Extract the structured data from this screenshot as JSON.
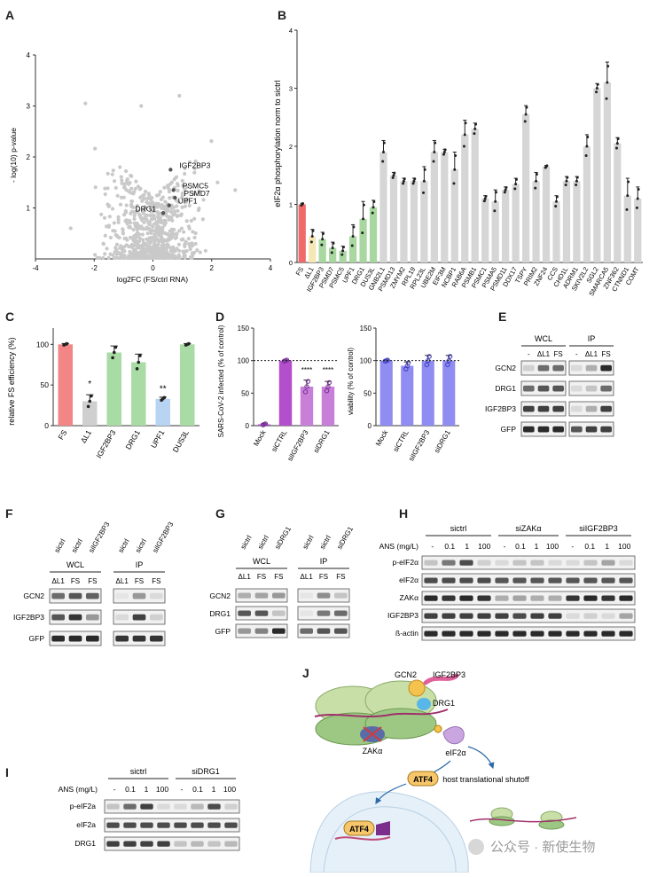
{
  "panels": {
    "A": {
      "letter": "A",
      "xlabel": "log2FC (FS/ctrl RNA)",
      "ylabel": "- log(10) p-value",
      "xticks": [
        "-4",
        "-2",
        "0",
        "2",
        "4"
      ],
      "yticks": [
        "1",
        "2",
        "3",
        "4"
      ],
      "labels": [
        "IGF2BP3",
        "PSMC5",
        "PSMD7",
        "UPF1",
        "DRG1"
      ]
    },
    "B": {
      "letter": "B",
      "ylabel": "eIF2α phosphorylation norm to sictrl",
      "yticks": [
        "0",
        "1",
        "2",
        "3",
        "4"
      ]
    },
    "C": {
      "letter": "C",
      "ylabel": "relative FS efficiency (%)",
      "yticks": [
        "0",
        "50",
        "100"
      ],
      "annotations": [
        "*",
        "**"
      ]
    },
    "D": {
      "letter": "D",
      "left_ylabel": "SARS-CoV-2 infected (% of control)",
      "right_ylabel": "viability (% of control)",
      "yticks": [
        "0",
        "50",
        "100",
        "150"
      ],
      "stars": "****"
    },
    "E": {
      "letter": "E",
      "groups": [
        "WCL",
        "IP"
      ],
      "lanes": [
        "-",
        "ΔL1",
        "FS"
      ],
      "rows": [
        "GCN2",
        "DRG1",
        "IGF2BP3",
        "GFP"
      ]
    },
    "F": {
      "letter": "F",
      "top_labels": [
        "sictrl",
        "sictrl",
        "siIGF2BP3"
      ],
      "groups": [
        "WCL",
        "IP"
      ],
      "lanes": [
        "ΔL1",
        "FS",
        "FS"
      ],
      "rows": [
        "GCN2",
        "IGF2BP3",
        "GFP"
      ]
    },
    "G": {
      "letter": "G",
      "top_labels": [
        "sictrl",
        "sictrl",
        "siDRG1"
      ],
      "groups": [
        "WCL",
        "IP"
      ],
      "lanes": [
        "ΔL1",
        "FS",
        "FS"
      ],
      "rows": [
        "GCN2",
        "DRG1",
        "GFP"
      ]
    },
    "H": {
      "letter": "H",
      "groups": [
        "sictrl",
        "siZAKα",
        "siIGF2BP3"
      ],
      "ans_label": "ANS (mg/L)",
      "doses": [
        "-",
        "0.1",
        "1",
        "100"
      ],
      "rows": [
        "p-eIF2α",
        "eIF2α",
        "ZAKα",
        "IGF2BP3",
        "ß-actin"
      ]
    },
    "I": {
      "letter": "I",
      "groups": [
        "sictrl",
        "siDRG1"
      ],
      "ans_label": "ANS (mg/L)",
      "doses": [
        "-",
        "0.1",
        "1",
        "100"
      ],
      "rows": [
        "p-eIF2a",
        "eIF2a",
        "DRG1"
      ]
    },
    "J": {
      "letter": "J",
      "labels": {
        "gcn2": "GCN2",
        "igf2bp3": "IGF2BP3",
        "drg1": "DRG1",
        "zak": "ZAKα",
        "eif2a": "eIF2α",
        "atf4": "ATF4",
        "atf4_nucleus": "ATF4",
        "shutoff": "host translational shutoff"
      }
    }
  },
  "watermark": "公众号 · 新使生物",
  "chart_data": [
    {
      "type": "scatter",
      "panel": "A",
      "xlabel": "log2FC (FS/ctrl RNA)",
      "ylabel": "- log(10) p-value",
      "xlim": [
        -4,
        4
      ],
      "ylim": [
        0,
        4
      ],
      "labeled_points": [
        {
          "name": "IGF2BP3",
          "x": 0.6,
          "y": 1.75
        },
        {
          "name": "PSMC5",
          "x": 0.7,
          "y": 1.35
        },
        {
          "name": "PSMD7",
          "x": 0.75,
          "y": 1.2
        },
        {
          "name": "UPF1",
          "x": 0.55,
          "y": 1.05
        },
        {
          "name": "DRG1",
          "x": 0.35,
          "y": 0.9
        }
      ]
    },
    {
      "type": "bar",
      "panel": "B",
      "ylabel": "eIF2α phosphorylation norm to sictrl",
      "ylim": [
        0,
        4
      ],
      "categories": [
        "FS",
        "ΔL1",
        "IGF2BP3",
        "PSMD7",
        "PSMC5",
        "UPF1",
        "DRG1",
        "DUS3L",
        "GNB2L1",
        "PSMD13",
        "ZMYM2",
        "RPL19",
        "RPL23L",
        "UBE2M",
        "EIF3M",
        "NCBP1",
        "RAB6A",
        "PSMB1",
        "PSMC1",
        "PSMA5",
        "PSMD11",
        "DDX17",
        "TSPY",
        "PRIM2",
        "ZNF24",
        "CCS",
        "CHD1L",
        "ADRM1",
        "SKIV2L2",
        "SGL2",
        "SMARCA5",
        "ZNF362",
        "CTNND1",
        "COMT"
      ],
      "values": [
        1.0,
        0.45,
        0.4,
        0.25,
        0.2,
        0.45,
        0.75,
        0.95,
        1.9,
        1.5,
        1.4,
        1.4,
        1.4,
        1.9,
        1.9,
        1.6,
        2.2,
        2.3,
        1.1,
        1.05,
        1.25,
        1.35,
        2.55,
        1.4,
        1.65,
        1.05,
        1.4,
        1.4,
        2.0,
        3.0,
        3.1,
        2.05,
        1.15,
        1.1
      ],
      "errors": [
        0.02,
        0.12,
        0.12,
        0.1,
        0.08,
        0.2,
        0.3,
        0.12,
        0.2,
        0.05,
        0.05,
        0.05,
        0.25,
        0.2,
        0.05,
        0.3,
        0.25,
        0.1,
        0.05,
        0.2,
        0.05,
        0.1,
        0.15,
        0.15,
        0.02,
        0.1,
        0.08,
        0.08,
        0.2,
        0.08,
        0.35,
        0.1,
        0.3,
        0.2
      ],
      "colors": [
        "#ef6b6b",
        "#f6e7b6",
        "#a8d8a0",
        "#a8d8a0",
        "#a8d8a0",
        "#a8d8a0",
        "#a8d8a0",
        "#a8d8a0",
        "#d6d6d6"
      ]
    },
    {
      "type": "bar",
      "panel": "C",
      "ylabel": "relative FS efficiency (%)",
      "ylim": [
        0,
        120
      ],
      "categories": [
        "FS",
        "ΔL1",
        "IGF2BP3",
        "DRG1",
        "UPF1",
        "DUS3L"
      ],
      "values": [
        100,
        30,
        90,
        78,
        33,
        100
      ],
      "errors": [
        1,
        8,
        8,
        10,
        2,
        1
      ],
      "colors": [
        "#f28585",
        "#cfcfcf",
        "#a9dba4",
        "#a9dba4",
        "#b9d3f2",
        "#a9dba4"
      ]
    },
    {
      "type": "bar",
      "panel": "D-left",
      "ylabel": "SARS-CoV-2 infected (% of control)",
      "ylim": [
        0,
        150
      ],
      "categories": [
        "Mock",
        "siCTRL",
        "siIGF2BP3",
        "siDRG1"
      ],
      "values": [
        2,
        100,
        60,
        60
      ],
      "errors": [
        1,
        1,
        10,
        8
      ],
      "colors": [
        "#b34fcc",
        "#b34fcc",
        "#c77fd8",
        "#c77fd8"
      ]
    },
    {
      "type": "bar",
      "panel": "D-right",
      "ylabel": "viability (% of control)",
      "ylim": [
        0,
        150
      ],
      "categories": [
        "Mock",
        "siCTRL",
        "siIGF2BP3",
        "siDRG1"
      ],
      "values": [
        100,
        92,
        100,
        100
      ],
      "errors": [
        1,
        6,
        8,
        8
      ],
      "colors": [
        "#8f8cf2",
        "#8f8cf2",
        "#8f8cf2",
        "#8f8cf2"
      ]
    }
  ]
}
